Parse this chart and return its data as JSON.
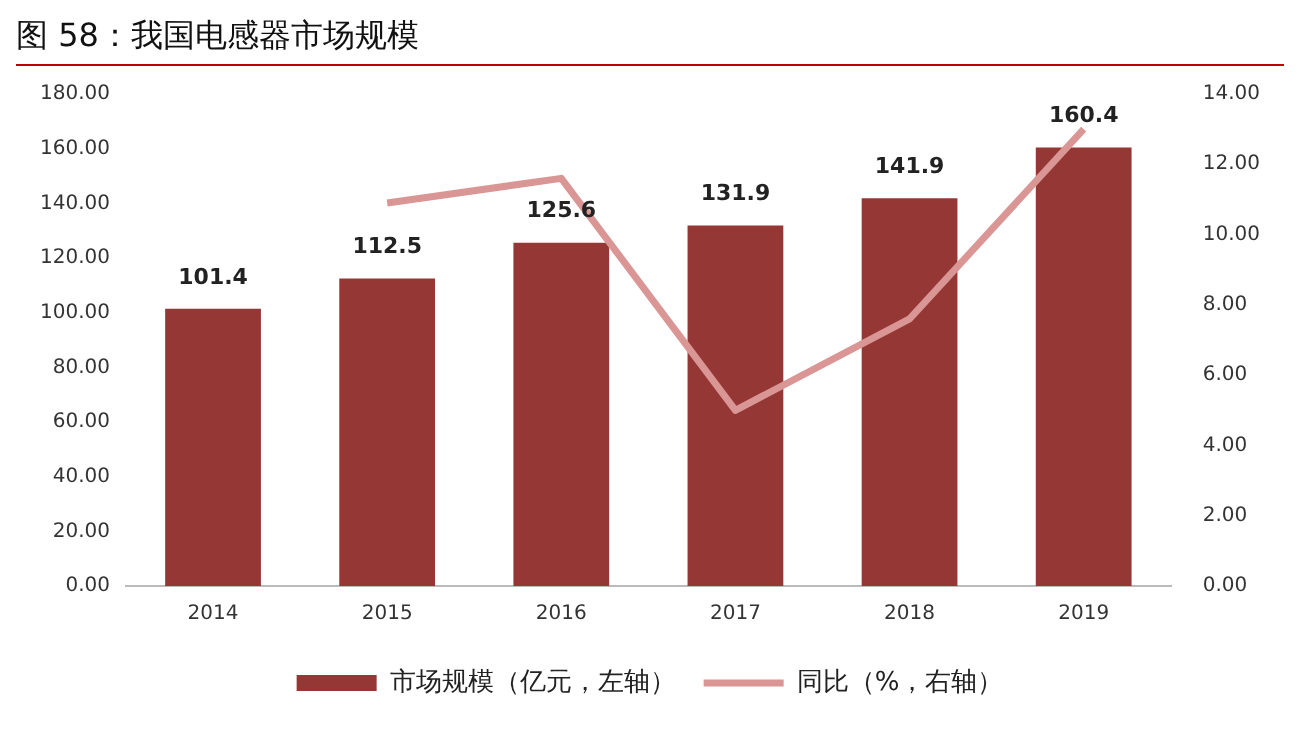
{
  "chart_data": {
    "type": "bar",
    "title": "图 58：我国电感器市场规模",
    "categories": [
      "2014",
      "2015",
      "2016",
      "2017",
      "2018",
      "2019"
    ],
    "series": [
      {
        "name": "市场规模（亿元，左轴）",
        "color": "#953735",
        "values": [
          101.4,
          112.5,
          125.6,
          131.9,
          141.9,
          160.4
        ],
        "value_labels": [
          "101.4",
          "112.5",
          "125.6",
          "131.9",
          "141.9",
          "160.4"
        ]
      },
      {
        "name": "同比（%，右轴）",
        "type": "line",
        "axis": "y2",
        "color": "#d99694",
        "marker": "none",
        "values": [
          null,
          10.9,
          11.6,
          5.0,
          7.6,
          13.0
        ]
      }
    ],
    "ylim": [
      0,
      180
    ],
    "yticks": [
      {
        "value": 0,
        "label": "0.00"
      },
      {
        "value": 20,
        "label": "20.00"
      },
      {
        "value": 40,
        "label": "40.00"
      },
      {
        "value": 60,
        "label": "60.00"
      },
      {
        "value": 80,
        "label": "80.00"
      },
      {
        "value": 100,
        "label": "100.00"
      },
      {
        "value": 120,
        "label": "120.00"
      },
      {
        "value": 140,
        "label": "140.00"
      },
      {
        "value": 160,
        "label": "160.00"
      },
      {
        "value": 180,
        "label": "180.00"
      }
    ],
    "y2lim": [
      0,
      14
    ],
    "y2ticks": [
      {
        "value": 0,
        "label": "0.00"
      },
      {
        "value": 2,
        "label": "2.00"
      },
      {
        "value": 4,
        "label": "4.00"
      },
      {
        "value": 6,
        "label": "6.00"
      },
      {
        "value": 8,
        "label": "8.00"
      },
      {
        "value": 10,
        "label": "10.00"
      },
      {
        "value": 12,
        "label": "12.00"
      },
      {
        "value": 14,
        "label": "14.00"
      }
    ],
    "legend": "bottom"
  }
}
